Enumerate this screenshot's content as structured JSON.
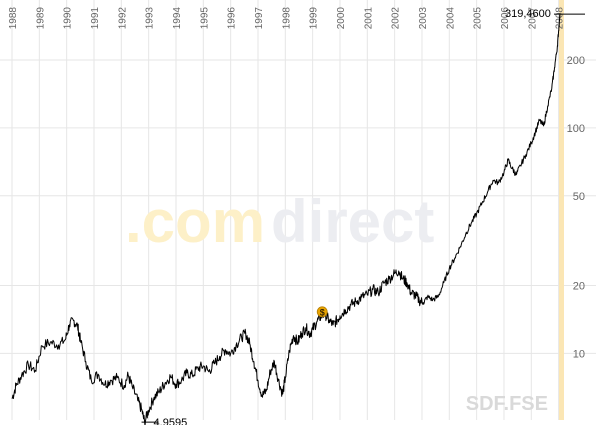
{
  "chart_data": {
    "type": "line",
    "title": "",
    "xlabel": "",
    "ylabel": "",
    "x_tick_labels": [
      "1988",
      "1989",
      "1990",
      "1991",
      "1992",
      "1993",
      "1994",
      "1995",
      "1996",
      "1997",
      "1998",
      "1999",
      "2000",
      "2001",
      "2002",
      "2003",
      "2004",
      "2005",
      "2006",
      "2007",
      "2008"
    ],
    "y_tick_labels": [
      "10",
      "20",
      "50",
      "100",
      "200"
    ],
    "y_scale": "log",
    "xlim": [
      1988.0,
      2008.05
    ],
    "ylim": [
      5.5,
      340
    ],
    "grid": true,
    "annotations": {
      "max_label": "319,4600",
      "min_label": "4,9595"
    },
    "watermark": {
      "part1": ".com",
      "part2": "direct"
    },
    "symbol_label": "SDF.FSE",
    "dividend_marker": {
      "label": "$",
      "x": 1999.35,
      "y": 15.3
    },
    "series": [
      {
        "color": "#000000",
        "points": [
          [
            1988.0,
            6.3
          ],
          [
            1988.15,
            7.2
          ],
          [
            1988.35,
            8.0
          ],
          [
            1988.6,
            8.9
          ],
          [
            1988.85,
            8.4
          ],
          [
            1989.1,
            10.8
          ],
          [
            1989.4,
            11.2
          ],
          [
            1989.7,
            10.9
          ],
          [
            1989.95,
            11.5
          ],
          [
            1990.1,
            13.4
          ],
          [
            1990.25,
            14.0
          ],
          [
            1990.4,
            13.2
          ],
          [
            1990.5,
            11.5
          ],
          [
            1990.7,
            9.2
          ],
          [
            1990.9,
            7.6
          ],
          [
            1991.15,
            8.1
          ],
          [
            1991.4,
            7.3
          ],
          [
            1991.6,
            7.6
          ],
          [
            1991.85,
            7.8
          ],
          [
            1992.1,
            7.2
          ],
          [
            1992.25,
            8.0
          ],
          [
            1992.4,
            7.1
          ],
          [
            1992.6,
            6.2
          ],
          [
            1992.75,
            5.6
          ],
          [
            1992.85,
            4.96
          ],
          [
            1993.0,
            5.6
          ],
          [
            1993.2,
            6.4
          ],
          [
            1993.4,
            6.8
          ],
          [
            1993.6,
            7.4
          ],
          [
            1993.8,
            7.9
          ],
          [
            1994.0,
            7.3
          ],
          [
            1994.2,
            7.6
          ],
          [
            1994.4,
            8.2
          ],
          [
            1994.6,
            8.0
          ],
          [
            1994.8,
            8.6
          ],
          [
            1995.0,
            8.8
          ],
          [
            1995.2,
            8.3
          ],
          [
            1995.4,
            9.0
          ],
          [
            1995.6,
            9.7
          ],
          [
            1995.8,
            10.4
          ],
          [
            1996.0,
            10.0
          ],
          [
            1996.2,
            10.9
          ],
          [
            1996.4,
            11.8
          ],
          [
            1996.55,
            12.3
          ],
          [
            1996.7,
            11.0
          ],
          [
            1996.85,
            9.2
          ],
          [
            1997.0,
            7.6
          ],
          [
            1997.15,
            6.5
          ],
          [
            1997.3,
            6.8
          ],
          [
            1997.45,
            8.3
          ],
          [
            1997.6,
            9.2
          ],
          [
            1997.75,
            7.6
          ],
          [
            1997.9,
            6.6
          ],
          [
            1998.0,
            7.8
          ],
          [
            1998.15,
            10.3
          ],
          [
            1998.3,
            12.0
          ],
          [
            1998.45,
            11.2
          ],
          [
            1998.6,
            12.3
          ],
          [
            1998.75,
            13.0
          ],
          [
            1998.9,
            12.2
          ],
          [
            1999.0,
            12.8
          ],
          [
            1999.15,
            13.8
          ],
          [
            1999.3,
            14.6
          ],
          [
            1999.45,
            15.0
          ],
          [
            1999.6,
            14.0
          ],
          [
            1999.75,
            13.4
          ],
          [
            1999.9,
            14.1
          ],
          [
            2000.0,
            14.7
          ],
          [
            2000.2,
            15.6
          ],
          [
            2000.4,
            16.4
          ],
          [
            2000.6,
            17.0
          ],
          [
            2000.8,
            17.8
          ],
          [
            2001.0,
            18.2
          ],
          [
            2001.2,
            19.2
          ],
          [
            2001.4,
            18.6
          ],
          [
            2001.6,
            20.5
          ],
          [
            2001.8,
            21.4
          ],
          [
            2002.0,
            22.6
          ],
          [
            2002.15,
            23.2
          ],
          [
            2002.3,
            21.4
          ],
          [
            2002.45,
            20.6
          ],
          [
            2002.6,
            18.6
          ],
          [
            2002.75,
            18.1
          ],
          [
            2002.9,
            17.2
          ],
          [
            2003.05,
            16.8
          ],
          [
            2003.2,
            17.8
          ],
          [
            2003.4,
            17.3
          ],
          [
            2003.6,
            17.9
          ],
          [
            2003.8,
            20.6
          ],
          [
            2004.0,
            23.8
          ],
          [
            2004.2,
            26.5
          ],
          [
            2004.4,
            29.7
          ],
          [
            2004.6,
            33.8
          ],
          [
            2004.8,
            37.8
          ],
          [
            2005.0,
            41.6
          ],
          [
            2005.2,
            46.5
          ],
          [
            2005.4,
            52.0
          ],
          [
            2005.6,
            58.5
          ],
          [
            2005.8,
            57.0
          ],
          [
            2006.0,
            63.5
          ],
          [
            2006.15,
            72.0
          ],
          [
            2006.3,
            66.0
          ],
          [
            2006.45,
            62.0
          ],
          [
            2006.6,
            68.0
          ],
          [
            2006.8,
            76.0
          ],
          [
            2007.0,
            86.0
          ],
          [
            2007.15,
            96.0
          ],
          [
            2007.3,
            108.0
          ],
          [
            2007.45,
            102.0
          ],
          [
            2007.6,
            125.0
          ],
          [
            2007.75,
            150.0
          ],
          [
            2007.85,
            185.0
          ],
          [
            2007.95,
            228.0
          ],
          [
            2008.0,
            270.0
          ],
          [
            2008.05,
            319.46
          ]
        ]
      }
    ]
  }
}
